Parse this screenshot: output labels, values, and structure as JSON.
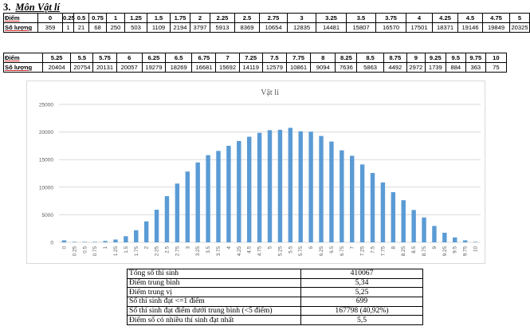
{
  "heading": {
    "number": "3.",
    "title": "Môn Vật lí"
  },
  "table_top": {
    "row_header": "Điểm",
    "row_count": "Số lượng",
    "scores": [
      "0",
      "0.25",
      "0.5",
      "0.75",
      "1",
      "1.25",
      "1.5",
      "1.75",
      "2",
      "2.25",
      "2.5",
      "2.75",
      "3",
      "3.25",
      "3.5",
      "3.75",
      "4",
      "4.25",
      "4.5",
      "4.75",
      "5"
    ],
    "counts": [
      "359",
      "1",
      "21",
      "68",
      "250",
      "503",
      "1109",
      "2194",
      "3797",
      "5913",
      "8369",
      "10654",
      "12835",
      "14481",
      "15807",
      "16570",
      "17501",
      "18371",
      "19146",
      "19849",
      "20325"
    ]
  },
  "table_bottom": {
    "row_header": "Điểm",
    "row_count": "Số lượng",
    "scores": [
      "5.25",
      "5.5",
      "5.75",
      "6",
      "6.25",
      "6.5",
      "6.75",
      "7",
      "7.25",
      "7.5",
      "7.75",
      "8",
      "8.25",
      "8.5",
      "8.75",
      "9",
      "9.25",
      "9.5",
      "9.75",
      "10"
    ],
    "counts": [
      "20404",
      "20754",
      "20131",
      "20057",
      "19279",
      "18269",
      "16681",
      "15692",
      "14119",
      "12579",
      "10861",
      "9094",
      "7636",
      "5863",
      "4492",
      "2972",
      "1739",
      "884",
      "363",
      "75"
    ]
  },
  "chart_data": {
    "type": "bar",
    "title": "Vật lí",
    "color": "#5b9bd5",
    "ylim": [
      0,
      25000
    ],
    "yticks": [
      0,
      5000,
      10000,
      15000,
      20000,
      25000
    ],
    "grid": true,
    "categories": [
      "0",
      "0.25",
      "0.5",
      "0.75",
      "1",
      "1.25",
      "1.5",
      "1.75",
      "2",
      "2.25",
      "2.5",
      "2.75",
      "3",
      "3.25",
      "3.5",
      "3.75",
      "4",
      "4.25",
      "4.5",
      "4.75",
      "5",
      "5.25",
      "5.5",
      "5.75",
      "6",
      "6.25",
      "6.5",
      "6.75",
      "7",
      "7.25",
      "7.5",
      "7.75",
      "8",
      "8.25",
      "8.5",
      "8.75",
      "9",
      "9.25",
      "9.5",
      "9.75",
      "10"
    ],
    "values": [
      359,
      1,
      21,
      68,
      250,
      503,
      1109,
      2194,
      3797,
      5913,
      8369,
      10654,
      12835,
      14481,
      15807,
      16570,
      17501,
      18371,
      19146,
      19849,
      20325,
      20404,
      20754,
      20131,
      20057,
      19279,
      18269,
      16681,
      15692,
      14119,
      12579,
      10861,
      9094,
      7636,
      5863,
      4492,
      2972,
      1739,
      884,
      363,
      75
    ]
  },
  "stats": [
    {
      "label": "Tổng số thí sinh",
      "value": "410067"
    },
    {
      "label": "Điểm trung bình",
      "value": "5,34"
    },
    {
      "label": "Điểm trung vị",
      "value": "5,25"
    },
    {
      "label": "Số thí sinh đạt <=1 điểm",
      "value": "699"
    },
    {
      "label": "Số thí sinh đạt điểm dưới trung bình (<5 điểm)",
      "value": "167798 (40,92%)"
    },
    {
      "label": "Điểm số có nhiều thí sinh đạt nhất",
      "value": "5,5"
    }
  ]
}
